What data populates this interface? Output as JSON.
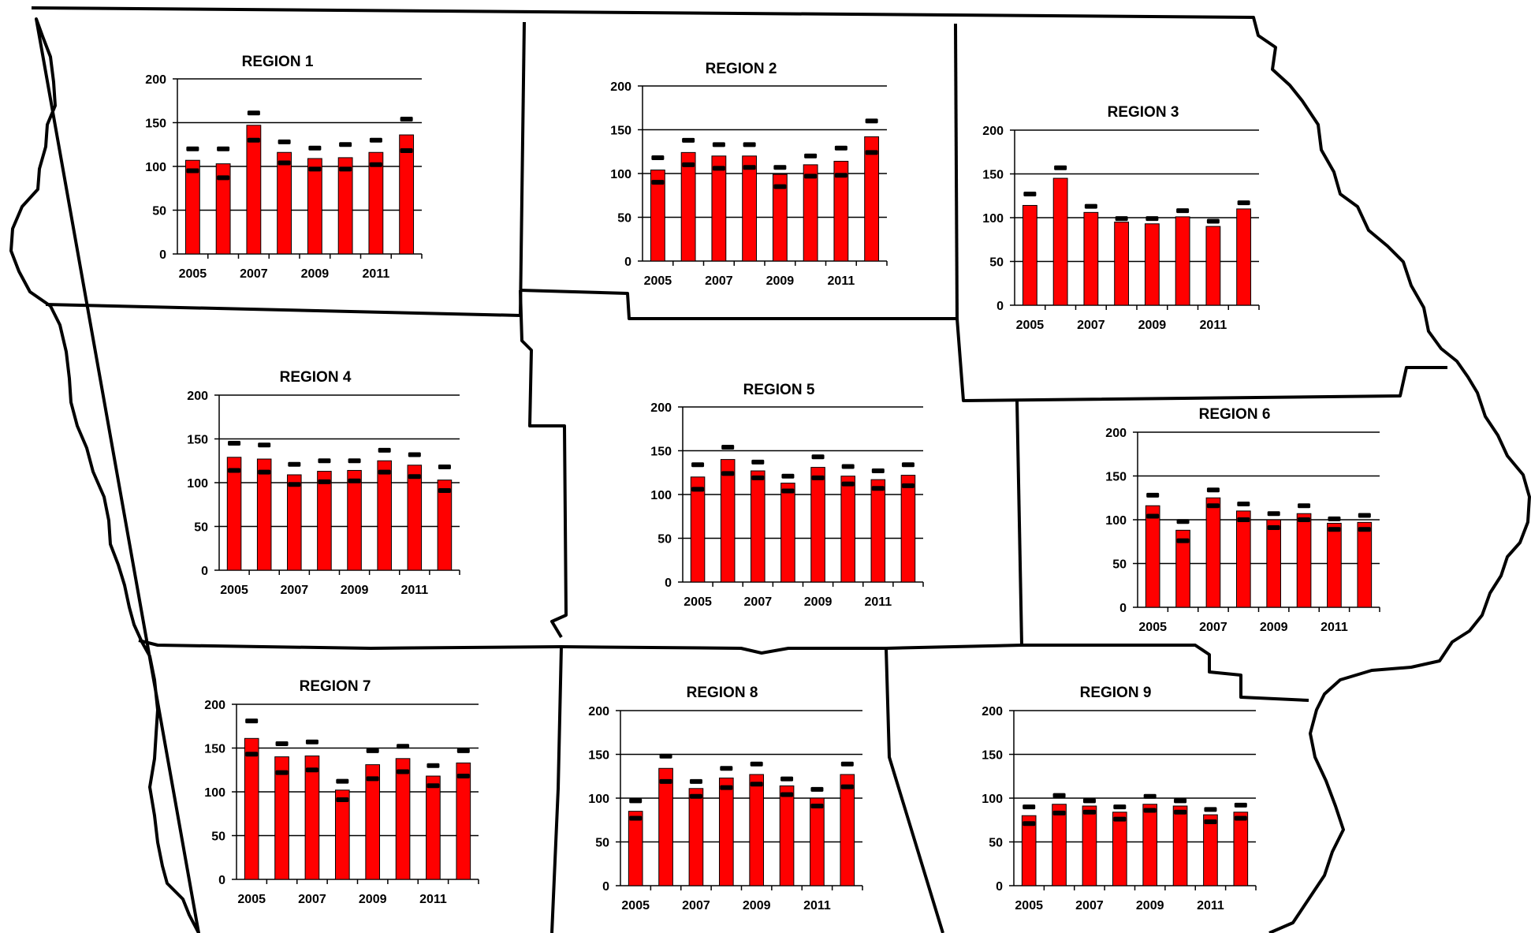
{
  "colors": {
    "bar": "#ff0000",
    "bar_outline": "#000000",
    "marker": "#000000",
    "border": "#000000"
  },
  "chart_data": [
    {
      "type": "bar",
      "title": "REGION 1",
      "categories": [
        "2005",
        "2006",
        "2007",
        "2008",
        "2009",
        "2010",
        "2011",
        "2012"
      ],
      "x_tick_labels": [
        "2005",
        "2007",
        "2009",
        "2011"
      ],
      "y_ticks": [
        "0",
        "50",
        "100",
        "150",
        "200"
      ],
      "ylim": [
        0,
        200
      ],
      "grid": true,
      "series": [
        {
          "values": [
            107,
            103,
            147,
            116,
            109,
            110,
            116,
            136
          ]
        }
      ],
      "upper_markers": [
        120,
        120,
        161,
        128,
        121,
        125,
        130,
        154
      ],
      "lower_markers": [
        95,
        87,
        130,
        104,
        97,
        97,
        102,
        118
      ]
    },
    {
      "type": "bar",
      "title": "REGION 2",
      "categories": [
        "2005",
        "2006",
        "2007",
        "2008",
        "2009",
        "2010",
        "2011",
        "2012"
      ],
      "x_tick_labels": [
        "2005",
        "2007",
        "2009",
        "2011"
      ],
      "y_ticks": [
        "0",
        "50",
        "100",
        "150",
        "200"
      ],
      "ylim": [
        0,
        200
      ],
      "grid": true,
      "series": [
        {
          "values": [
            104,
            124,
            120,
            120,
            99,
            110,
            114,
            142
          ]
        }
      ],
      "upper_markers": [
        118,
        138,
        133,
        133,
        107,
        120,
        129,
        160
      ],
      "lower_markers": [
        90,
        110,
        106,
        107,
        85,
        97,
        98,
        124
      ]
    },
    {
      "type": "bar",
      "title": "REGION 3",
      "categories": [
        "2005",
        "2006",
        "2007",
        "2008",
        "2009",
        "2010",
        "2011",
        "2012"
      ],
      "x_tick_labels": [
        "2005",
        "2007",
        "2009",
        "2011"
      ],
      "y_ticks": [
        "0",
        "50",
        "100",
        "150",
        "200"
      ],
      "ylim": [
        0,
        200
      ],
      "grid": true,
      "series": [
        {
          "values": [
            114,
            145,
            106,
            95,
            93,
            101,
            90,
            110
          ]
        }
      ],
      "upper_markers": [
        127,
        157,
        113,
        99,
        99,
        108,
        96,
        117
      ]
    },
    {
      "type": "bar",
      "title": "REGION 4",
      "categories": [
        "2005",
        "2006",
        "2007",
        "2008",
        "2009",
        "2010",
        "2011",
        "2012"
      ],
      "x_tick_labels": [
        "2005",
        "2007",
        "2009",
        "2011"
      ],
      "y_ticks": [
        "0",
        "50",
        "100",
        "150",
        "200"
      ],
      "ylim": [
        0,
        200
      ],
      "grid": true,
      "series": [
        {
          "values": [
            129,
            127,
            109,
            113,
            114,
            125,
            120,
            103
          ]
        }
      ],
      "upper_markers": [
        145,
        143,
        121,
        125,
        125,
        137,
        132,
        118
      ],
      "lower_markers": [
        114,
        112,
        98,
        101,
        102,
        112,
        107,
        91
      ]
    },
    {
      "type": "bar",
      "title": "REGION 5",
      "categories": [
        "2005",
        "2006",
        "2007",
        "2008",
        "2009",
        "2010",
        "2011",
        "2012"
      ],
      "x_tick_labels": [
        "2005",
        "2007",
        "2009",
        "2011"
      ],
      "y_ticks": [
        "0",
        "50",
        "100",
        "150",
        "200"
      ],
      "ylim": [
        0,
        200
      ],
      "grid": true,
      "series": [
        {
          "values": [
            120,
            140,
            127,
            113,
            131,
            121,
            117,
            122
          ]
        }
      ],
      "upper_markers": [
        134,
        154,
        137,
        121,
        143,
        132,
        127,
        134
      ],
      "lower_markers": [
        106,
        124,
        119,
        104,
        119,
        112,
        107,
        110
      ]
    },
    {
      "type": "bar",
      "title": "REGION 6",
      "categories": [
        "2005",
        "2006",
        "2007",
        "2008",
        "2009",
        "2010",
        "2011",
        "2012"
      ],
      "x_tick_labels": [
        "2005",
        "2007",
        "2009",
        "2011"
      ],
      "y_ticks": [
        "0",
        "50",
        "100",
        "150",
        "200"
      ],
      "ylim": [
        0,
        200
      ],
      "grid": true,
      "series": [
        {
          "values": [
            116,
            88,
            125,
            110,
            100,
            107,
            96,
            97
          ]
        }
      ],
      "upper_markers": [
        128,
        98,
        134,
        118,
        107,
        116,
        101,
        105
      ],
      "lower_markers": [
        104,
        76,
        116,
        100,
        91,
        100,
        89,
        89
      ]
    },
    {
      "type": "bar",
      "title": "REGION 7",
      "categories": [
        "2005",
        "2006",
        "2007",
        "2008",
        "2009",
        "2010",
        "2011",
        "2012"
      ],
      "x_tick_labels": [
        "2005",
        "2007",
        "2009",
        "2011"
      ],
      "y_ticks": [
        "0",
        "50",
        "100",
        "150",
        "200"
      ],
      "ylim": [
        0,
        200
      ],
      "grid": true,
      "series": [
        {
          "values": [
            161,
            140,
            141,
            102,
            131,
            138,
            118,
            133
          ]
        }
      ],
      "upper_markers": [
        181,
        155,
        157,
        112,
        147,
        152,
        130,
        147
      ],
      "lower_markers": [
        143,
        122,
        125,
        91,
        115,
        123,
        107,
        118
      ]
    },
    {
      "type": "bar",
      "title": "REGION 8",
      "categories": [
        "2005",
        "2006",
        "2007",
        "2008",
        "2009",
        "2010",
        "2011",
        "2012"
      ],
      "x_tick_labels": [
        "2005",
        "2007",
        "2009",
        "2011"
      ],
      "y_ticks": [
        "0",
        "50",
        "100",
        "150",
        "200"
      ],
      "ylim": [
        0,
        200
      ],
      "grid": true,
      "series": [
        {
          "values": [
            85,
            134,
            111,
            123,
            127,
            114,
            100,
            127
          ]
        }
      ],
      "upper_markers": [
        97,
        148,
        119,
        134,
        139,
        122,
        110,
        139
      ],
      "lower_markers": [
        77,
        119,
        102,
        112,
        116,
        104,
        91,
        113
      ]
    },
    {
      "type": "bar",
      "title": "REGION 9",
      "categories": [
        "2005",
        "2006",
        "2007",
        "2008",
        "2009",
        "2010",
        "2011",
        "2012"
      ],
      "x_tick_labels": [
        "2005",
        "2007",
        "2009",
        "2011"
      ],
      "y_ticks": [
        "0",
        "50",
        "100",
        "150",
        "200"
      ],
      "ylim": [
        0,
        200
      ],
      "grid": true,
      "series": [
        {
          "values": [
            80,
            93,
            91,
            84,
            93,
            91,
            81,
            84
          ]
        }
      ],
      "upper_markers": [
        90,
        103,
        97,
        90,
        102,
        97,
        87,
        92
      ],
      "lower_markers": [
        71,
        83,
        84,
        76,
        86,
        84,
        73,
        77
      ]
    }
  ]
}
